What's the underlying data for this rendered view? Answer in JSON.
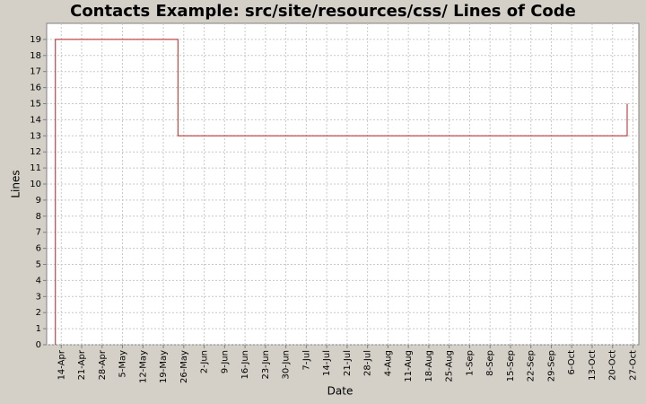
{
  "chart_data": {
    "type": "line",
    "step": true,
    "title": "Contacts Example: src/site/resources/css/ Lines of Code",
    "x_label": "Date",
    "y_label": "Lines",
    "x": [
      "12-Apr",
      "12-Apr",
      "24-May",
      "25-Oct"
    ],
    "series": [
      {
        "name": "Lines",
        "color": "#b22222",
        "values": [
          0,
          19,
          13,
          15
        ]
      }
    ],
    "xlim": [
      "9-Apr",
      "29-Oct"
    ],
    "xticks": [
      "14-Apr",
      "21-Apr",
      "28-Apr",
      "5-May",
      "12-May",
      "19-May",
      "26-May",
      "2-Jun",
      "9-Jun",
      "16-Jun",
      "23-Jun",
      "30-Jun",
      "7-Jul",
      "14-Jul",
      "21-Jul",
      "28-Jul",
      "4-Aug",
      "11-Aug",
      "18-Aug",
      "25-Aug",
      "1-Sep",
      "8-Sep",
      "15-Sep",
      "22-Sep",
      "29-Sep",
      "6-Oct",
      "13-Oct",
      "20-Oct",
      "27-Oct"
    ],
    "ylim": [
      0,
      20
    ],
    "yticks": [
      0,
      1,
      2,
      3,
      4,
      5,
      6,
      7,
      8,
      9,
      10,
      11,
      12,
      13,
      14,
      15,
      16,
      17,
      18,
      19
    ],
    "grid": true
  }
}
